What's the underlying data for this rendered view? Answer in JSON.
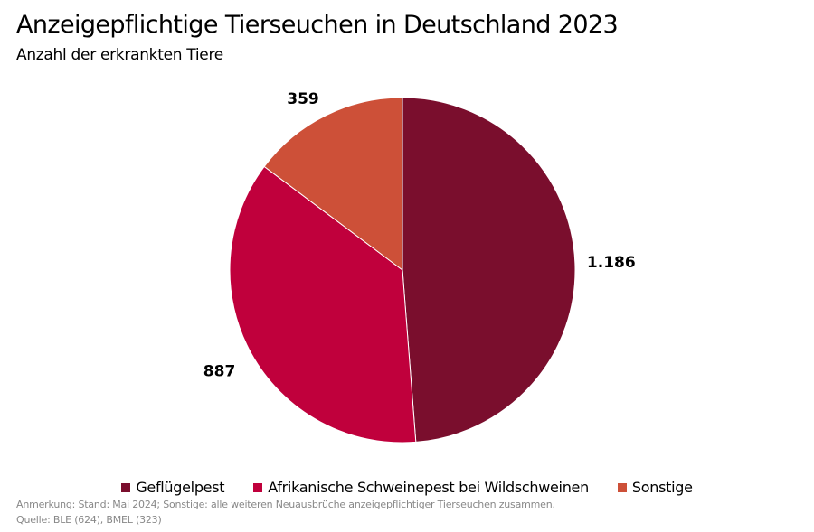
{
  "chart_data": {
    "type": "pie",
    "title": "Anzeigepflichtige Tierseuchen in Deutschland 2023",
    "subtitle": "Anzahl der erkrankten Tiere",
    "categories": [
      "Geflügelpest",
      "Afrikanische Schweinepest bei Wildschweinen",
      "Sonstige"
    ],
    "values": [
      1186,
      887,
      359
    ],
    "data_labels": [
      "1.186",
      "887",
      "359"
    ],
    "colors": [
      "#7a0e2d",
      "#c0003c",
      "#cd5038"
    ],
    "legend_position": "bottom",
    "note": "Anmerkung: Stand: Mai 2024; Sonstige: alle weiteren Neuausbrüche anzeigepflichtiger Tierseuchen zusammen.",
    "source": "Quelle: BLE (624), BMEL (323)"
  }
}
